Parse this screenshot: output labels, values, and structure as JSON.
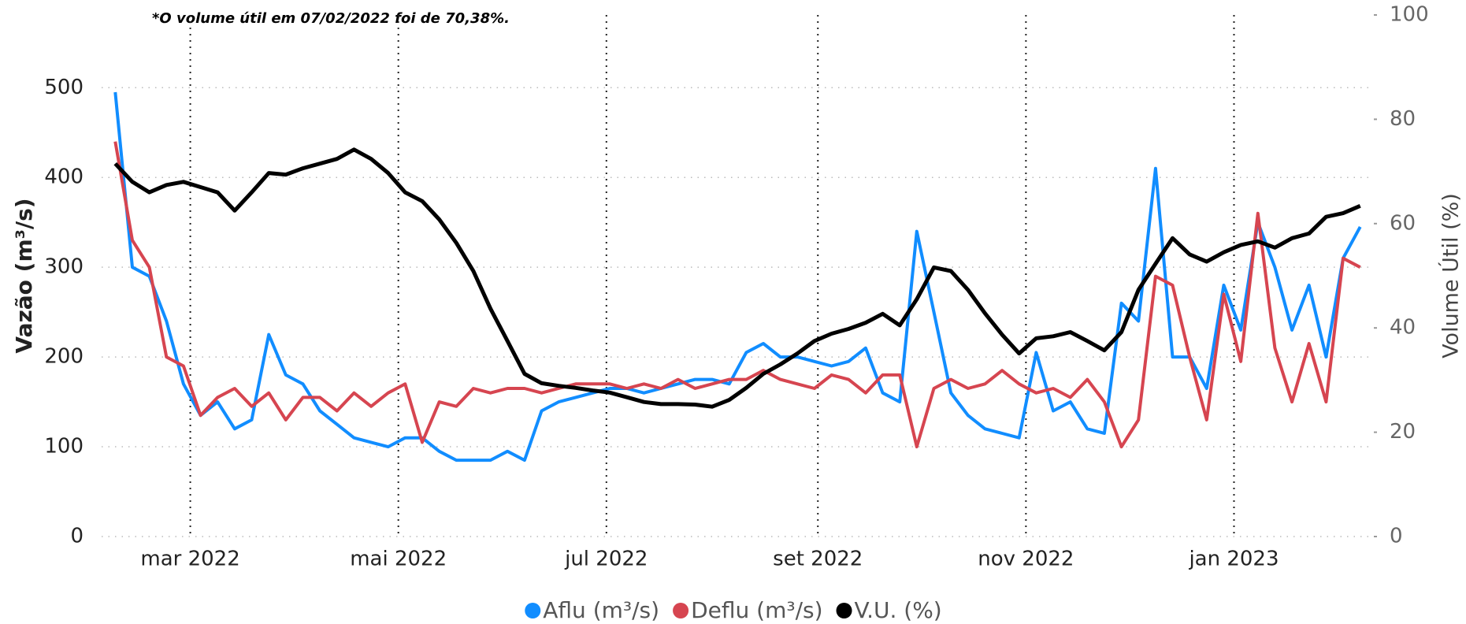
{
  "chart_data": {
    "type": "line",
    "annotation": "*O volume útil em 07/02/2022 foi de 70,38%.",
    "y_label": "Vazão (m³/s)",
    "y2_label": "Volume Útil (%)",
    "x": [
      0,
      5,
      10,
      15,
      20,
      25,
      30,
      35,
      40,
      45,
      50,
      55,
      60,
      65,
      70,
      75,
      80,
      85,
      90,
      95,
      100,
      105,
      110,
      115,
      120,
      125,
      130,
      135,
      140,
      145,
      150,
      155,
      160,
      165,
      170,
      175,
      180,
      185,
      190,
      195,
      200,
      205,
      210,
      215,
      220,
      225,
      230,
      235,
      240,
      245,
      250,
      255,
      260,
      265,
      270,
      275,
      280,
      285,
      290,
      295,
      300,
      305,
      310,
      315,
      320,
      325,
      330,
      335,
      340,
      345,
      350,
      355,
      360,
      365
    ],
    "xlim": [
      -4,
      369
    ],
    "xticks": [
      {
        "value": 22,
        "label": "mar 2022"
      },
      {
        "value": 83,
        "label": "mai 2022"
      },
      {
        "value": 144,
        "label": "jul 2022"
      },
      {
        "value": 206,
        "label": "set 2022"
      },
      {
        "value": 267,
        "label": "nov 2022"
      },
      {
        "value": 328,
        "label": "jan 2023"
      }
    ],
    "ylim": [
      0,
      581
    ],
    "yticks": [
      0,
      100,
      200,
      300,
      400,
      500
    ],
    "y2lim": [
      0,
      100
    ],
    "y2ticks": [
      0,
      20,
      40,
      60,
      80,
      100
    ],
    "grid": true,
    "series": [
      {
        "name": "Aflu (m³/s)",
        "color": "#118DFF",
        "values": [
          495,
          300,
          290,
          240,
          170,
          135,
          150,
          120,
          130,
          225,
          180,
          170,
          140,
          125,
          110,
          105,
          100,
          110,
          110,
          95,
          85,
          85,
          85,
          95,
          85,
          140,
          150,
          155,
          160,
          165,
          165,
          160,
          165,
          170,
          175,
          175,
          170,
          205,
          215,
          200,
          200,
          195,
          190,
          195,
          210,
          160,
          150,
          340,
          250,
          160,
          135,
          120,
          115,
          110,
          205,
          140,
          150,
          120,
          115,
          260,
          240,
          410,
          200,
          200,
          165,
          280,
          230,
          350,
          300,
          230,
          280,
          200,
          310,
          345
        ]
      },
      {
        "name": "Deflu (m³/s)",
        "color": "#D64550",
        "values": [
          440,
          330,
          300,
          200,
          190,
          135,
          155,
          165,
          145,
          160,
          130,
          155,
          155,
          140,
          160,
          145,
          160,
          170,
          105,
          150,
          145,
          165,
          160,
          165,
          165,
          160,
          165,
          170,
          170,
          170,
          165,
          170,
          165,
          175,
          165,
          170,
          175,
          175,
          185,
          175,
          170,
          165,
          180,
          175,
          160,
          180,
          180,
          100,
          165,
          175,
          165,
          170,
          185,
          170,
          160,
          165,
          155,
          175,
          150,
          100,
          130,
          290,
          280,
          200,
          130,
          270,
          195,
          360,
          210,
          150,
          215,
          150,
          310,
          300
        ]
      },
      {
        "name": "V.U. (%)",
        "color": "#000000",
        "axis": "y2",
        "values": [
          71.5,
          68,
          66,
          67.4,
          68,
          67,
          66,
          62.5,
          66,
          69.7,
          69.4,
          70.6,
          71.5,
          72.4,
          74.2,
          72.4,
          69.7,
          66,
          64.3,
          60.8,
          56.3,
          50.9,
          43.7,
          37.5,
          31.2,
          29.4,
          28.9,
          28.5,
          28,
          27.6,
          26.7,
          25.8,
          25.4,
          25.4,
          25.3,
          24.9,
          26.2,
          28.5,
          31.2,
          33,
          35.1,
          37.5,
          38.9,
          39.8,
          41,
          42.7,
          40.5,
          45.5,
          51.6,
          50.9,
          47.3,
          42.8,
          38.7,
          35.1,
          38,
          38.4,
          39.2,
          37.5,
          35.7,
          39.2,
          47.3,
          52.3,
          57.2,
          54.1,
          52.7,
          54.5,
          55.9,
          56.6,
          55.4,
          57.2,
          58.1,
          61.3,
          62,
          63.4
        ]
      }
    ]
  }
}
